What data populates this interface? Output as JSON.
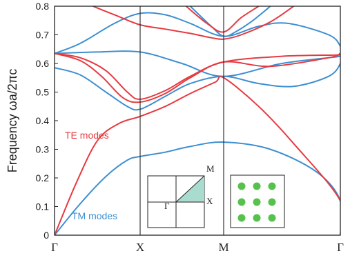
{
  "chart_data": {
    "type": "line",
    "ylabel": "Frequency  ωa/2πc",
    "ylim": [
      0,
      0.8
    ],
    "yticks": [
      "0",
      "0.1",
      "0.2",
      "0.3",
      "0.4",
      "0.5",
      "0.6",
      "0.7",
      "0.8"
    ],
    "x_points": [
      "Γ",
      "X",
      "M",
      "Γ"
    ],
    "colors": {
      "te": "#e53a40",
      "tm": "#3d8fd1"
    },
    "annotations": {
      "te": "TE modes",
      "tm": "TM modes"
    },
    "inset_bz_labels": {
      "gamma": "Γ",
      "x": "X",
      "m": "M"
    },
    "series": [
      {
        "group": "te",
        "points": [
          [
            0,
            0
          ],
          [
            0.25,
            0.18
          ],
          [
            0.5,
            0.33
          ],
          [
            0.75,
            0.39
          ],
          [
            1,
            0.415
          ],
          [
            1.3,
            0.45
          ],
          [
            1.6,
            0.495
          ],
          [
            1.9,
            0.535
          ],
          [
            2,
            0.55
          ],
          [
            2.3,
            0.45
          ],
          [
            2.6,
            0.32
          ],
          [
            3,
            0.12
          ],
          [
            3.41,
            0
          ]
        ]
      },
      {
        "group": "te",
        "points": [
          [
            0,
            0.635
          ],
          [
            0.3,
            0.61
          ],
          [
            0.55,
            0.555
          ],
          [
            0.8,
            0.48
          ],
          [
            1,
            0.465
          ],
          [
            1.3,
            0.495
          ],
          [
            1.6,
            0.55
          ],
          [
            2,
            0.605
          ],
          [
            2.4,
            0.59
          ],
          [
            2.9,
            0.62
          ],
          [
            3.41,
            0.635
          ]
        ]
      },
      {
        "group": "te",
        "points": [
          [
            0,
            0.635
          ],
          [
            0.3,
            0.62
          ],
          [
            0.6,
            0.575
          ],
          [
            0.85,
            0.5
          ],
          [
            1,
            0.475
          ],
          [
            1.3,
            0.505
          ],
          [
            1.6,
            0.555
          ],
          [
            2,
            0.605
          ],
          [
            2.5,
            0.625
          ],
          [
            3,
            0.63
          ],
          [
            3.41,
            0.635
          ]
        ]
      },
      {
        "group": "te",
        "points": [
          [
            0.45,
            0.8
          ],
          [
            0.7,
            0.77
          ],
          [
            1,
            0.735
          ],
          [
            1.3,
            0.72
          ],
          [
            1.6,
            0.705
          ],
          [
            1.85,
            0.69
          ],
          [
            2,
            0.685
          ],
          [
            2.15,
            0.7
          ],
          [
            2.4,
            0.745
          ],
          [
            2.6,
            0.8
          ]
        ]
      },
      {
        "group": "te",
        "points": [
          [
            1.55,
            0.8
          ],
          [
            1.8,
            0.74
          ],
          [
            2,
            0.71
          ],
          [
            2.15,
            0.76
          ],
          [
            2.3,
            0.8
          ]
        ]
      },
      {
        "group": "tm",
        "points": [
          [
            0,
            0
          ],
          [
            0.3,
            0.11
          ],
          [
            0.6,
            0.205
          ],
          [
            0.85,
            0.262
          ],
          [
            1,
            0.275
          ],
          [
            1.3,
            0.29
          ],
          [
            1.6,
            0.31
          ],
          [
            2,
            0.325
          ],
          [
            2.4,
            0.3
          ],
          [
            2.8,
            0.22
          ],
          [
            3.1,
            0.12
          ],
          [
            3.41,
            0
          ]
        ]
      },
      {
        "group": "tm",
        "points": [
          [
            0,
            0.585
          ],
          [
            0.3,
            0.56
          ],
          [
            0.6,
            0.5
          ],
          [
            0.85,
            0.45
          ],
          [
            1,
            0.44
          ],
          [
            1.3,
            0.485
          ],
          [
            1.6,
            0.53
          ],
          [
            2,
            0.555
          ],
          [
            2.3,
            0.53
          ],
          [
            2.6,
            0.52
          ],
          [
            2.9,
            0.555
          ],
          [
            3.2,
            0.6
          ],
          [
            3.41,
            0.635
          ]
        ]
      },
      {
        "group": "tm",
        "points": [
          [
            0,
            0.635
          ],
          [
            0.5,
            0.64
          ],
          [
            1,
            0.64
          ],
          [
            1.5,
            0.6
          ],
          [
            2,
            0.555
          ],
          [
            2.5,
            0.6
          ],
          [
            3,
            0.625
          ],
          [
            3.41,
            0.635
          ]
        ]
      },
      {
        "group": "tm",
        "points": [
          [
            0,
            0.635
          ],
          [
            0.3,
            0.67
          ],
          [
            0.7,
            0.74
          ],
          [
            1,
            0.775
          ],
          [
            1.3,
            0.77
          ],
          [
            1.6,
            0.74
          ],
          [
            2,
            0.695
          ],
          [
            2.3,
            0.73
          ],
          [
            2.55,
            0.74
          ],
          [
            2.9,
            0.7
          ],
          [
            3.2,
            0.66
          ],
          [
            3.41,
            0.635
          ]
        ]
      },
      {
        "group": "tm",
        "points": [
          [
            1.6,
            0.8
          ],
          [
            1.85,
            0.73
          ],
          [
            2,
            0.695
          ],
          [
            2.1,
            0.71
          ],
          [
            2.25,
            0.75
          ],
          [
            2.4,
            0.8
          ]
        ]
      }
    ]
  }
}
